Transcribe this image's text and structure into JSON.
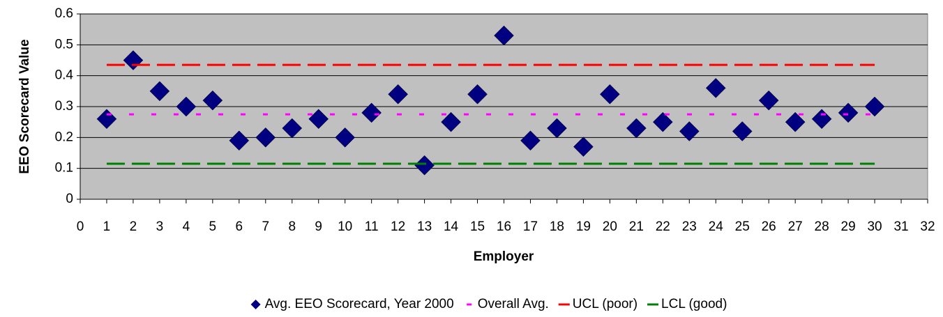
{
  "chart_data": {
    "type": "scatter",
    "xlabel": "Employer",
    "ylabel": "EEO Scorecard Value",
    "xlim": [
      0,
      32
    ],
    "ylim": [
      0,
      0.6
    ],
    "xticks": [
      0,
      1,
      2,
      3,
      4,
      5,
      6,
      7,
      8,
      9,
      10,
      11,
      12,
      13,
      14,
      15,
      16,
      17,
      18,
      19,
      20,
      21,
      22,
      23,
      24,
      25,
      26,
      27,
      28,
      29,
      30,
      31,
      32
    ],
    "yticks": [
      0,
      0.1,
      0.2,
      0.3,
      0.4,
      0.5,
      0.6
    ],
    "grid": true,
    "legend": "bottom",
    "background": "#c0c0c0",
    "series": [
      {
        "name": "Avg. EEO Scorecard, Year 2000",
        "color": "#000080",
        "style": "diamond",
        "x": [
          1,
          2,
          3,
          4,
          5,
          6,
          7,
          8,
          9,
          10,
          11,
          12,
          13,
          14,
          15,
          16,
          17,
          18,
          19,
          20,
          21,
          22,
          23,
          24,
          25,
          26,
          27,
          28,
          29,
          30
        ],
        "values": [
          0.26,
          0.45,
          0.35,
          0.3,
          0.32,
          0.19,
          0.2,
          0.23,
          0.26,
          0.2,
          0.28,
          0.34,
          0.11,
          0.25,
          0.34,
          0.53,
          0.19,
          0.23,
          0.17,
          0.34,
          0.23,
          0.25,
          0.22,
          0.36,
          0.22,
          0.32,
          0.25,
          0.26,
          0.28,
          0.3
        ]
      },
      {
        "name": "Overall Avg.",
        "color": "#ff00ff",
        "style": "short-dash",
        "x": [
          1,
          30
        ],
        "values": [
          0.275,
          0.275
        ]
      },
      {
        "name": "UCL (poor)",
        "color": "#ff0000",
        "style": "long-dash",
        "x": [
          1,
          30
        ],
        "values": [
          0.435,
          0.435
        ]
      },
      {
        "name": "LCL (good)",
        "color": "#008000",
        "style": "long-dash",
        "x": [
          1,
          30
        ],
        "values": [
          0.115,
          0.115
        ]
      }
    ]
  }
}
